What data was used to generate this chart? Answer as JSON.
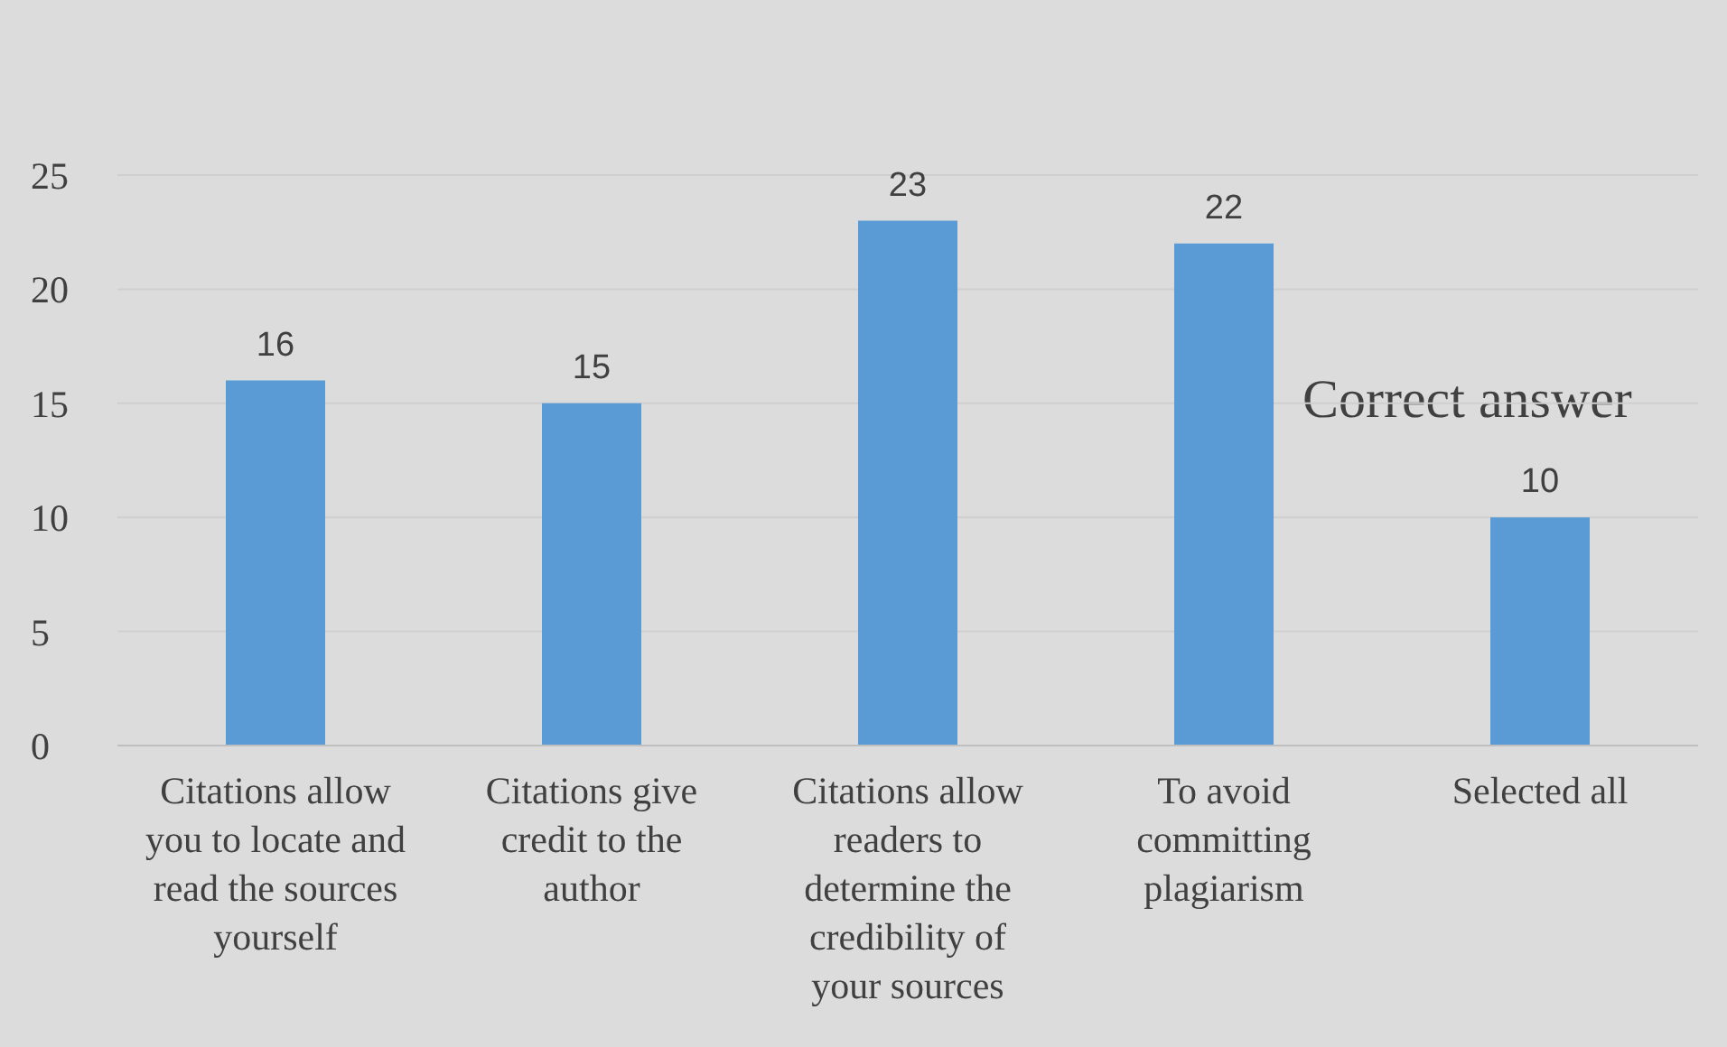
{
  "chart_data": {
    "type": "bar",
    "categories": [
      "Citations allow you to locate and read the sources yourself",
      "Citations give credit to the author",
      "Citations allow readers to determine the credibility of your sources",
      "To avoid committing plagiarism",
      "Selected all"
    ],
    "values": [
      16,
      15,
      23,
      22,
      10
    ],
    "color": "#5b9bd5",
    "ylim": [
      0,
      25
    ],
    "yticks": [
      0,
      5,
      10,
      15,
      20,
      25
    ],
    "grid": "y",
    "data_labels": true,
    "annotations": [
      "Correct answer"
    ]
  }
}
